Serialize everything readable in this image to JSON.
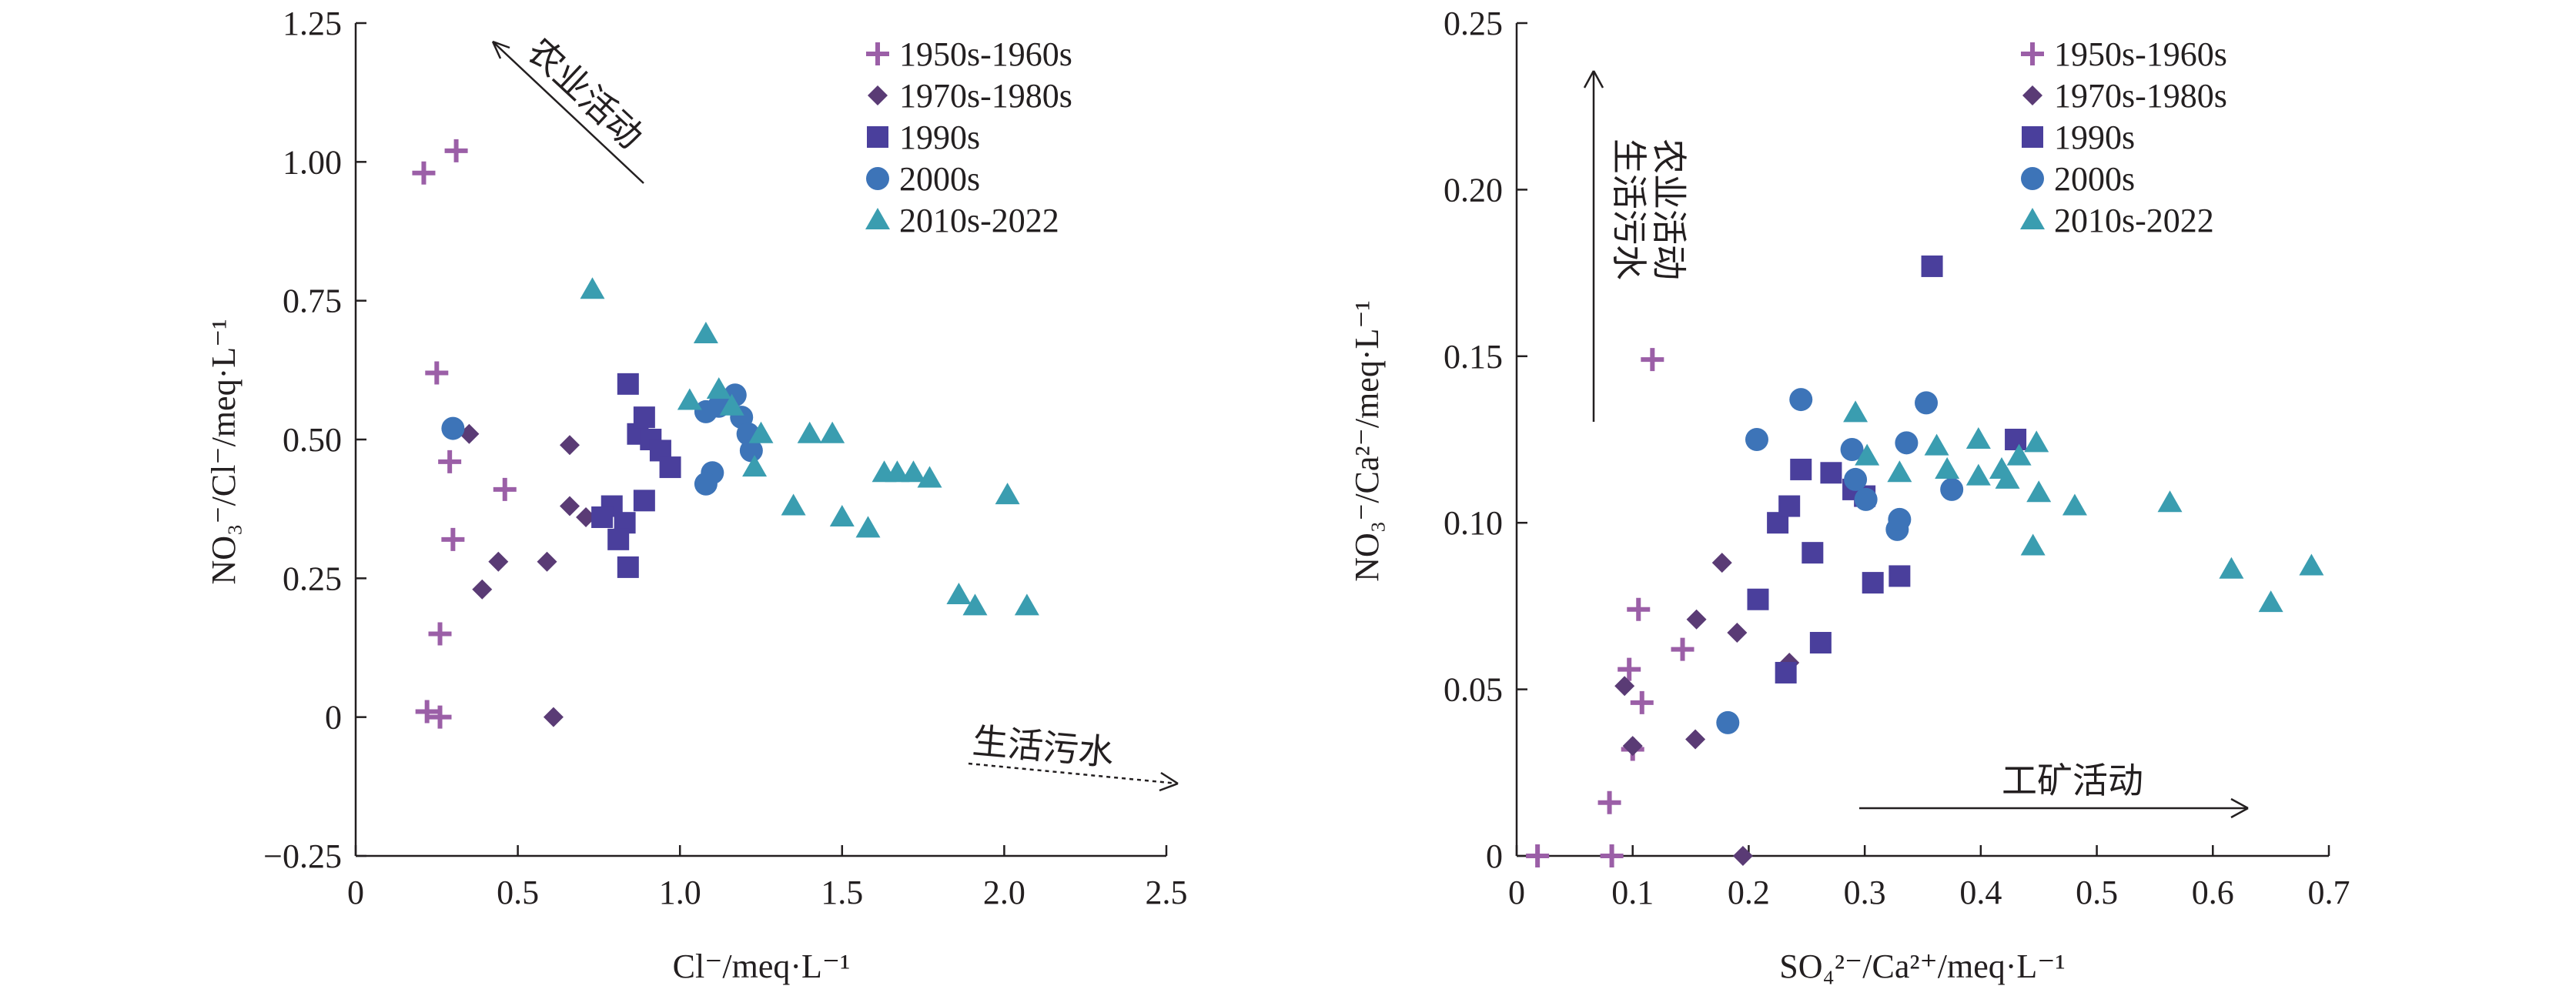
{
  "chart_data": [
    {
      "type": "scatter",
      "xlabel": "Cl⁻/meq·L⁻¹",
      "ylabel": "NO₃⁻/Cl⁻/meq·L⁻¹",
      "xlim": [
        0,
        2.5
      ],
      "ylim": [
        -0.25,
        1.25
      ],
      "xticks": [
        "0",
        "0.5",
        "1.0",
        "1.5",
        "2.0",
        "2.5"
      ],
      "yticks": [
        "−0.25",
        "0",
        "0.25",
        "0.50",
        "0.75",
        "1.00",
        "1.25"
      ],
      "annotations": [
        {
          "text": "农业活动",
          "dir": "up-left"
        },
        {
          "text": "生活污水",
          "dir": "down-right"
        }
      ],
      "series": [
        {
          "name": "1950s-1960s",
          "marker": "plus",
          "color": "#9b5fa7",
          "points": [
            [
              0.21,
              0.98
            ],
            [
              0.31,
              1.02
            ],
            [
              0.25,
              0.62
            ],
            [
              0.29,
              0.46
            ],
            [
              0.3,
              0.32
            ],
            [
              0.26,
              0.15
            ],
            [
              0.22,
              0.01
            ],
            [
              0.26,
              0.0
            ],
            [
              0.46,
              0.41
            ]
          ]
        },
        {
          "name": "1970s-1980s",
          "marker": "diamond",
          "color": "#5a3b75",
          "points": [
            [
              0.35,
              0.51
            ],
            [
              0.66,
              0.49
            ],
            [
              0.66,
              0.38
            ],
            [
              0.71,
              0.36
            ],
            [
              0.44,
              0.28
            ],
            [
              0.59,
              0.28
            ],
            [
              0.39,
              0.23
            ],
            [
              0.61,
              0.0
            ]
          ]
        },
        {
          "name": "1990s",
          "marker": "square",
          "color": "#4a3f9c",
          "points": [
            [
              0.84,
              0.6
            ],
            [
              0.87,
              0.51
            ],
            [
              0.89,
              0.54
            ],
            [
              0.91,
              0.5
            ],
            [
              0.94,
              0.48
            ],
            [
              0.97,
              0.45
            ],
            [
              0.89,
              0.39
            ],
            [
              0.79,
              0.38
            ],
            [
              0.76,
              0.36
            ],
            [
              0.83,
              0.35
            ],
            [
              0.81,
              0.32
            ],
            [
              0.84,
              0.27
            ]
          ]
        },
        {
          "name": "2000s",
          "marker": "circle",
          "color": "#3d74b8",
          "points": [
            [
              0.3,
              0.52
            ],
            [
              1.08,
              0.55
            ],
            [
              1.12,
              0.56
            ],
            [
              1.17,
              0.58
            ],
            [
              1.19,
              0.54
            ],
            [
              1.21,
              0.51
            ],
            [
              1.22,
              0.48
            ],
            [
              1.1,
              0.44
            ],
            [
              1.08,
              0.42
            ]
          ]
        },
        {
          "name": "2010s-2022",
          "marker": "triangle",
          "color": "#3a9db0",
          "points": [
            [
              0.73,
              0.77
            ],
            [
              1.08,
              0.69
            ],
            [
              1.03,
              0.57
            ],
            [
              1.12,
              0.59
            ],
            [
              1.16,
              0.56
            ],
            [
              1.25,
              0.51
            ],
            [
              1.23,
              0.45
            ],
            [
              1.4,
              0.51
            ],
            [
              1.47,
              0.51
            ],
            [
              1.35,
              0.38
            ],
            [
              1.5,
              0.36
            ],
            [
              1.58,
              0.34
            ],
            [
              1.63,
              0.44
            ],
            [
              1.67,
              0.44
            ],
            [
              1.72,
              0.44
            ],
            [
              1.77,
              0.43
            ],
            [
              2.01,
              0.4
            ],
            [
              1.86,
              0.22
            ],
            [
              1.91,
              0.2
            ],
            [
              2.07,
              0.2
            ]
          ]
        }
      ]
    },
    {
      "type": "scatter",
      "xlabel": "SO₄²⁻/Ca²⁺/meq·L⁻¹",
      "ylabel": "NO₃⁻/Ca²⁻/meq·L⁻¹",
      "xlim": [
        0,
        0.7
      ],
      "ylim": [
        0,
        0.25
      ],
      "xticks": [
        "0",
        "0.1",
        "0.2",
        "0.3",
        "0.4",
        "0.5",
        "0.6",
        "0.7"
      ],
      "yticks": [
        "0",
        "0.05",
        "0.10",
        "0.15",
        "0.20",
        "0.25"
      ],
      "annotations": [
        {
          "text": "农业活动",
          "dir": "up"
        },
        {
          "text": "生活污水",
          "dir": "up"
        },
        {
          "text": "工矿活动",
          "dir": "right"
        }
      ],
      "series": [
        {
          "name": "1950s-1960s",
          "marker": "plus",
          "color": "#9b5fa7",
          "points": [
            [
              0.018,
              0.0
            ],
            [
              0.082,
              0.0
            ],
            [
              0.08,
              0.016
            ],
            [
              0.1,
              0.032
            ],
            [
              0.097,
              0.056
            ],
            [
              0.105,
              0.074
            ],
            [
              0.108,
              0.046
            ],
            [
              0.143,
              0.062
            ],
            [
              0.117,
              0.149
            ]
          ]
        },
        {
          "name": "1970s-1980s",
          "marker": "diamond",
          "color": "#5a3b75",
          "points": [
            [
              0.093,
              0.051
            ],
            [
              0.1,
              0.033
            ],
            [
              0.154,
              0.035
            ],
            [
              0.155,
              0.071
            ],
            [
              0.177,
              0.088
            ],
            [
              0.19,
              0.067
            ],
            [
              0.195,
              0.0
            ],
            [
              0.235,
              0.058
            ]
          ]
        },
        {
          "name": "1990s",
          "marker": "square",
          "color": "#4a3f9c",
          "points": [
            [
              0.208,
              0.077
            ],
            [
              0.225,
              0.1
            ],
            [
              0.235,
              0.105
            ],
            [
              0.245,
              0.116
            ],
            [
              0.262,
              0.064
            ],
            [
              0.232,
              0.055
            ],
            [
              0.255,
              0.091
            ],
            [
              0.271,
              0.115
            ],
            [
              0.29,
              0.11
            ],
            [
              0.3,
              0.108
            ],
            [
              0.307,
              0.082
            ],
            [
              0.33,
              0.084
            ],
            [
              0.358,
              0.177
            ],
            [
              0.43,
              0.125
            ]
          ]
        },
        {
          "name": "2000s",
          "marker": "circle",
          "color": "#3d74b8",
          "points": [
            [
              0.182,
              0.04
            ],
            [
              0.207,
              0.125
            ],
            [
              0.245,
              0.137
            ],
            [
              0.289,
              0.122
            ],
            [
              0.292,
              0.113
            ],
            [
              0.301,
              0.107
            ],
            [
              0.328,
              0.098
            ],
            [
              0.33,
              0.101
            ],
            [
              0.336,
              0.124
            ],
            [
              0.353,
              0.136
            ],
            [
              0.375,
              0.11
            ]
          ]
        },
        {
          "name": "2010s-2022",
          "marker": "triangle",
          "color": "#3a9db0",
          "points": [
            [
              0.292,
              0.133
            ],
            [
              0.302,
              0.12
            ],
            [
              0.33,
              0.115
            ],
            [
              0.362,
              0.123
            ],
            [
              0.371,
              0.116
            ],
            [
              0.398,
              0.125
            ],
            [
              0.398,
              0.114
            ],
            [
              0.418,
              0.116
            ],
            [
              0.423,
              0.113
            ],
            [
              0.433,
              0.12
            ],
            [
              0.448,
              0.124
            ],
            [
              0.445,
              0.093
            ],
            [
              0.45,
              0.109
            ],
            [
              0.481,
              0.105
            ],
            [
              0.563,
              0.106
            ],
            [
              0.616,
              0.086
            ],
            [
              0.65,
              0.076
            ],
            [
              0.685,
              0.087
            ]
          ]
        }
      ]
    }
  ]
}
